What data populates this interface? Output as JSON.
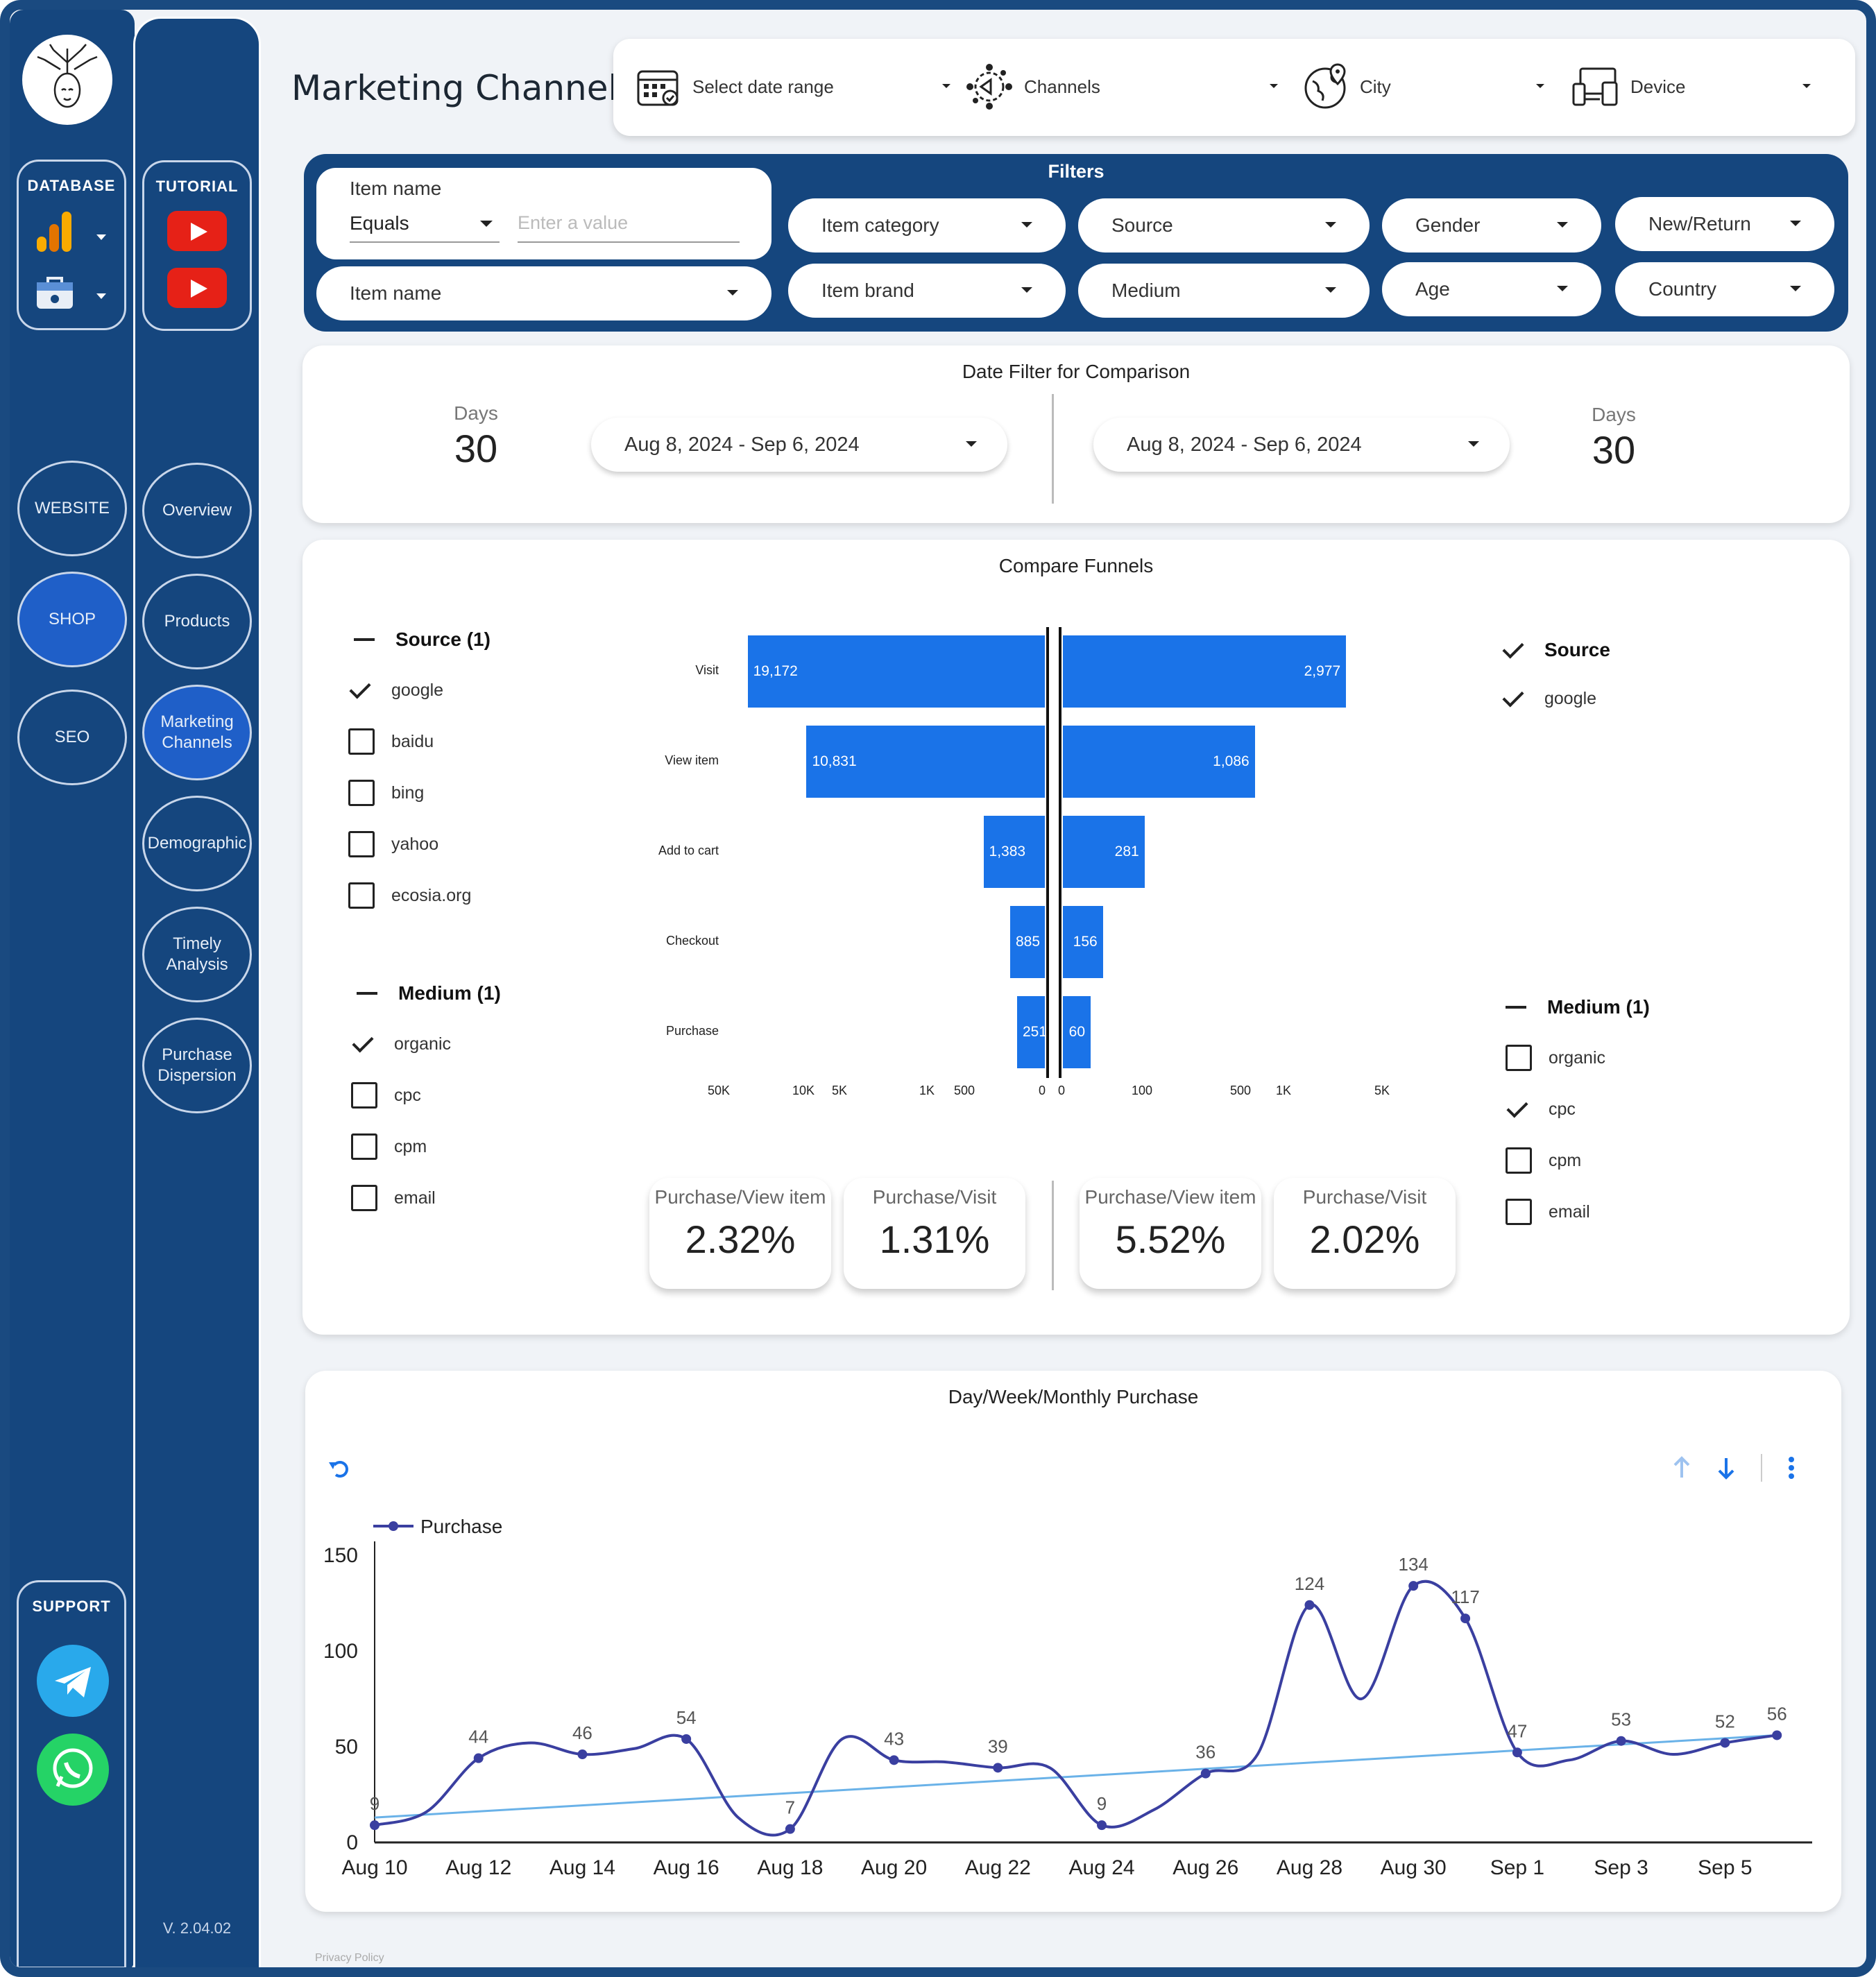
{
  "app": {
    "title": "Marketing Channels",
    "version": "V. 2.04.02",
    "footer": "Privacy Policy"
  },
  "sidebar_left": {
    "database_title": "DATABASE",
    "sections": [
      "WEBSITE",
      "SHOP",
      "SEO"
    ],
    "active_section": "SHOP",
    "support_title": "SUPPORT",
    "support_icons": [
      "telegram-icon",
      "whatsapp-icon"
    ]
  },
  "sidebar_right": {
    "tutorial_title": "TUTORIAL",
    "pages": [
      "Overview",
      "Products",
      "Marketing Channels",
      "Demographic",
      "Timely Analysis",
      "Purchase Dispersion"
    ],
    "active_page": "Marketing Channels"
  },
  "controls": {
    "date_range": "Select date range",
    "channels": "Channels",
    "city": "City",
    "device": "Device"
  },
  "filters": {
    "title": "Filters",
    "item_name_label": "Item name",
    "operator": "Equals",
    "value_placeholder": "Enter a value",
    "item_name_dropdown": "Item name",
    "dropdowns": [
      "Item category",
      "Source",
      "Gender",
      "New/Return",
      "Item brand",
      "Medium",
      "Age",
      "Country"
    ]
  },
  "comparison": {
    "title": "Date Filter for Comparison",
    "left": {
      "days_label": "Days",
      "days": "30",
      "range": "Aug 8, 2024 - Sep 6, 2024"
    },
    "right": {
      "days_label": "Days",
      "days": "30",
      "range": "Aug 8, 2024 - Sep 6, 2024"
    }
  },
  "funnels": {
    "title": "Compare Funnels",
    "left_filters": {
      "source_title": "Source (1)",
      "sources": [
        {
          "label": "google",
          "checked": true
        },
        {
          "label": "baidu",
          "checked": false
        },
        {
          "label": "bing",
          "checked": false
        },
        {
          "label": "yahoo",
          "checked": false
        },
        {
          "label": "ecosia.org",
          "checked": false
        }
      ],
      "medium_title": "Medium (1)",
      "mediums": [
        {
          "label": "organic",
          "checked": true
        },
        {
          "label": "cpc",
          "checked": false
        },
        {
          "label": "cpm",
          "checked": false
        },
        {
          "label": "email",
          "checked": false
        }
      ]
    },
    "right_filters": {
      "source_title": "Source",
      "sources": [
        {
          "label": "google",
          "checked": true
        }
      ],
      "medium_title": "Medium (1)",
      "mediums": [
        {
          "label": "organic",
          "checked": false
        },
        {
          "label": "cpc",
          "checked": true
        },
        {
          "label": "cpm",
          "checked": false
        },
        {
          "label": "email",
          "checked": false
        }
      ]
    },
    "stages": [
      "Visit",
      "View item",
      "Add to cart",
      "Checkout",
      "Purchase"
    ],
    "left_values": [
      "19,172",
      "10,831",
      "1,383",
      "885",
      "251"
    ],
    "right_values": [
      "2,977",
      "1,086",
      "281",
      "156",
      "60"
    ],
    "left_axis": [
      "50K",
      "10K",
      "5K",
      "1K",
      "500",
      "0"
    ],
    "right_axis": [
      "0",
      "100",
      "500",
      "1K",
      "5K"
    ],
    "metrics": [
      {
        "label": "Purchase/View item",
        "value": "2.32%"
      },
      {
        "label": "Purchase/Visit",
        "value": "1.31%"
      },
      {
        "label": "Purchase/View item",
        "value": "5.52%"
      },
      {
        "label": "Purchase/Visit",
        "value": "2.02%"
      }
    ]
  },
  "chart_data": {
    "type": "line",
    "title": "Day/Week/Monthly Purchase",
    "series": [
      {
        "name": "Purchase",
        "values": [
          9,
          16,
          44,
          52,
          46,
          49,
          54,
          13,
          7,
          54,
          43,
          42,
          39,
          39,
          9,
          17,
          36,
          46,
          124,
          75,
          134,
          117,
          47,
          43,
          53,
          46,
          52,
          56
        ]
      }
    ],
    "x": [
      "Aug 10",
      "Aug 11",
      "Aug 12",
      "Aug 13",
      "Aug 14",
      "Aug 15",
      "Aug 16",
      "Aug 17",
      "Aug 18",
      "Aug 19",
      "Aug 20",
      "Aug 21",
      "Aug 22",
      "Aug 23",
      "Aug 24",
      "Aug 25",
      "Aug 26",
      "Aug 27",
      "Aug 28",
      "Aug 29",
      "Aug 30",
      "Aug 31",
      "Sep 1",
      "Sep 2",
      "Sep 3",
      "Sep 4",
      "Sep 5",
      "Sep 6"
    ],
    "x_tick_labels": [
      "Aug 10",
      "Aug 12",
      "Aug 14",
      "Aug 16",
      "Aug 18",
      "Aug 20",
      "Aug 22",
      "Aug 24",
      "Aug 26",
      "Aug 28",
      "Aug 30",
      "Sep 1",
      "Sep 3",
      "Sep 5"
    ],
    "y_ticks": [
      0,
      50,
      100,
      150
    ],
    "ylim": [
      0,
      150
    ],
    "trendline": [
      13,
      56
    ],
    "legend": "top-left",
    "colors": {
      "line": "#3a3fa0",
      "trend": "#6ab2e8",
      "axis": "#222222"
    }
  },
  "colors": {
    "navy": "#15467e",
    "accent": "#1a73e8",
    "active": "#1f5fc8"
  }
}
